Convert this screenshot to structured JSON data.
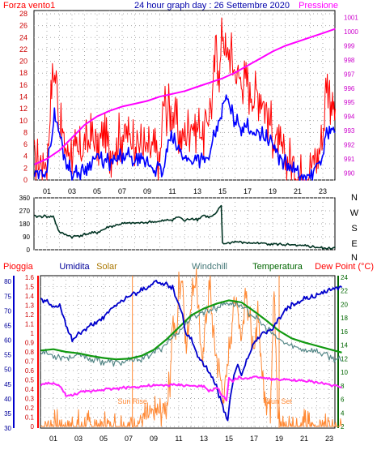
{
  "chart_data": [
    {
      "type": "line",
      "title": "24 hour graph day : 26 Settembre 2020",
      "left_label": "Forza vento1",
      "right_label": "Pressione",
      "x_ticks": [
        "01",
        "03",
        "05",
        "07",
        "09",
        "11",
        "13",
        "15",
        "17",
        "19",
        "21",
        "23"
      ],
      "y_left_ticks": [
        "0",
        "2",
        "4",
        "6",
        "8",
        "10",
        "12",
        "14",
        "16",
        "18",
        "20",
        "22",
        "24",
        "26",
        "28"
      ],
      "y_left_range": [
        0,
        28
      ],
      "y_right_ticks": [
        "990",
        "991",
        "992",
        "993",
        "994",
        "995",
        "996",
        "997",
        "998",
        "999",
        "1000",
        "1001"
      ],
      "y_right_range": [
        989.5,
        1001.5
      ],
      "grid": true,
      "colors": {
        "gust": "#ff0000",
        "speed": "#0000ff",
        "pressure": "#ff00ff",
        "title": "#0000aa"
      },
      "series": [
        {
          "key": "gust",
          "hours": [
            0,
            0.5,
            1,
            1.2,
            1.5,
            1.8,
            2,
            2.3,
            2.6,
            3,
            3.5,
            4,
            4.5,
            5,
            5.5,
            6,
            6.5,
            7,
            7.5,
            8,
            8.5,
            9,
            9.5,
            10,
            10.3,
            10.6,
            11,
            11.5,
            12,
            12.5,
            13,
            13.5,
            14,
            14.2,
            14.5,
            14.8,
            15,
            15.3,
            15.6,
            16,
            16.5,
            17,
            17.5,
            18,
            18.5,
            19,
            19.5,
            20,
            20.5,
            21,
            21.5,
            22,
            22.5,
            23,
            23.3,
            23.6,
            24
          ],
          "values": [
            3,
            3,
            3,
            10,
            18,
            16,
            9,
            7,
            5,
            5,
            4,
            6,
            7,
            6,
            7,
            5,
            6,
            8,
            7,
            7,
            6,
            5,
            5,
            3,
            13,
            12,
            12,
            8,
            7,
            10,
            9,
            8,
            12,
            14,
            22,
            18,
            26,
            20,
            22,
            18,
            17,
            16,
            14,
            15,
            12,
            8,
            5,
            4,
            3,
            1,
            0,
            2,
            4,
            7,
            18,
            14,
            12
          ]
        },
        {
          "key": "speed",
          "hours": [
            0,
            0.5,
            1,
            1.3,
            1.6,
            2,
            2.4,
            2.8,
            3,
            3.5,
            4,
            4.5,
            5,
            5.5,
            6,
            6.5,
            7,
            7.5,
            8,
            8.5,
            9,
            9.5,
            10,
            10.3,
            10.6,
            11,
            11.5,
            12,
            12.5,
            13,
            13.5,
            14,
            14.3,
            14.6,
            15,
            15.3,
            15.6,
            16,
            16.5,
            17,
            17.5,
            18,
            18.5,
            19,
            19.5,
            20,
            20.5,
            21,
            21.5,
            22,
            22.5,
            23,
            23.3,
            23.6,
            24
          ],
          "values": [
            1,
            1,
            2,
            6,
            11,
            8,
            4,
            2,
            1,
            1,
            2,
            3,
            4,
            3,
            3,
            3,
            4,
            4,
            3,
            3,
            3,
            2,
            2,
            1,
            6,
            7,
            5,
            4,
            3,
            4,
            3,
            4,
            7,
            9,
            12,
            14,
            12,
            10,
            9,
            9,
            8,
            8,
            7,
            6,
            4,
            3,
            2,
            1,
            0,
            1,
            2,
            4,
            8,
            9,
            8
          ]
        },
        {
          "key": "pressure",
          "hours": [
            0,
            1,
            2,
            3,
            4,
            5,
            6,
            7,
            8,
            9,
            10,
            11,
            12,
            13,
            14,
            15,
            16,
            17,
            18,
            19,
            20,
            21,
            22,
            23,
            24
          ],
          "values": [
            990.6,
            991.0,
            991.6,
            992.5,
            993.4,
            994.0,
            994.4,
            994.7,
            994.9,
            995.1,
            995.4,
            995.6,
            995.8,
            996.1,
            996.4,
            996.7,
            997.1,
            997.6,
            998.1,
            998.6,
            999.0,
            999.3,
            999.6,
            999.9,
            1000.2
          ]
        }
      ]
    },
    {
      "type": "line",
      "direction_labels": [
        "N",
        "W",
        "S",
        "E",
        "N"
      ],
      "y_ticks": [
        "0",
        "90",
        "180",
        "270",
        "360"
      ],
      "y_range": [
        0,
        360
      ],
      "x_ticks": [
        "01",
        "03",
        "05",
        "07",
        "09",
        "11",
        "13",
        "15",
        "17",
        "19",
        "21",
        "23"
      ],
      "grid": true,
      "colors": {
        "line": "#003322"
      },
      "series": [
        {
          "key": "direction",
          "hours": [
            0,
            1,
            1.5,
            2,
            3,
            4,
            5,
            6,
            7,
            8,
            9,
            10,
            11,
            11.5,
            12,
            12.5,
            13,
            13.5,
            14,
            14.5,
            14.9,
            15,
            16,
            17,
            18,
            19,
            20,
            21,
            22,
            22.5,
            23,
            23.5,
            24
          ],
          "values": [
            232,
            232,
            232,
            120,
            90,
            105,
            120,
            160,
            180,
            185,
            190,
            195,
            210,
            230,
            200,
            220,
            210,
            240,
            225,
            250,
            310,
            40,
            55,
            48,
            45,
            42,
            35,
            28,
            22,
            18,
            10,
            6,
            20
          ]
        }
      ]
    },
    {
      "type": "line",
      "headers": [
        "Pioggia",
        "Umidita",
        "Solar",
        "Windchill",
        "Temperatura",
        "Dew Point (°C)"
      ],
      "header_colors": [
        "#ff0000",
        "#000099",
        "#aa7700",
        "#447777",
        "#006600",
        "#ff0000"
      ],
      "x_ticks": [
        "01",
        "03",
        "05",
        "07",
        "09",
        "11",
        "13",
        "15",
        "17",
        "19",
        "21",
        "23"
      ],
      "humidity_ticks": [
        "30",
        "35",
        "40",
        "45",
        "50",
        "55",
        "60",
        "65",
        "70",
        "75",
        "80"
      ],
      "humidity_range": [
        30,
        82
      ],
      "rain_ticks": [
        "0",
        "0.1",
        "0.2",
        "0.3",
        "0.4",
        "0.5",
        "0.6",
        "0.7",
        "0.8",
        "0.9",
        "1",
        "1.1",
        "1.2",
        "1.3",
        "1.4",
        "1.5",
        "1.6"
      ],
      "rain_range": [
        0,
        1.6
      ],
      "temp_ticks": [
        "2",
        "4",
        "6",
        "8",
        "10",
        "12",
        "14",
        "16",
        "18",
        "20",
        "22",
        "24"
      ],
      "temp_range": [
        2,
        24
      ],
      "annotations": [
        {
          "text": "Sun Rise",
          "hour": 7.3
        },
        {
          "text": "Sun Set",
          "hour": 19.0
        }
      ],
      "grid": true,
      "colors": {
        "humidity": "#0000cc",
        "solar": "#ff8833",
        "windchill": "#558888",
        "temperature": "#119911",
        "dewpoint": "#ff22ff",
        "rain": "#ff0000"
      },
      "series": [
        {
          "key": "humidity",
          "hours": [
            0,
            0.5,
            1,
            1.5,
            2,
            2.5,
            3,
            4,
            5,
            6,
            7,
            8,
            8.5,
            9,
            10,
            10.5,
            11,
            11.3,
            11.6,
            12,
            12.5,
            13,
            13.5,
            14,
            14.3,
            14.6,
            14.9,
            15.1,
            15.4,
            15.7,
            16,
            16.5,
            17,
            17.5,
            18,
            18.5,
            19,
            19.5,
            20,
            21,
            22,
            23,
            23.5,
            24
          ],
          "values": [
            74,
            73,
            71,
            72,
            65,
            60,
            62,
            65,
            68,
            72,
            75,
            77,
            78,
            80,
            79,
            78,
            72,
            68,
            62,
            60,
            55,
            52,
            48,
            44,
            40,
            36,
            33,
            40,
            48,
            52,
            48,
            54,
            59,
            62,
            63,
            64,
            67,
            70,
            72,
            74,
            75,
            77,
            78,
            78
          ]
        },
        {
          "key": "solar",
          "hours": [
            0,
            6.9,
            7.3,
            7.8,
            8.5,
            9,
            9.5,
            10,
            10.3,
            10.5,
            10.8,
            11,
            11.3,
            11.6,
            12,
            12.4,
            12.8,
            13.2,
            13.5,
            13.8,
            14.2,
            14.6,
            15,
            15.3,
            15.6,
            16,
            16.3,
            16.7,
            17,
            17.3,
            17.6,
            18,
            18.3,
            18.6,
            18.9,
            19.2,
            24
          ],
          "values": [
            0,
            0,
            0.02,
            0.05,
            0.1,
            0.13,
            0.15,
            0.2,
            0.5,
            1.2,
            0.9,
            1.5,
            1.6,
            0.8,
            1.4,
            1.6,
            0.7,
            1.2,
            1.5,
            0.9,
            0.6,
            0.3,
            0.8,
            1.2,
            1.4,
            0.9,
            1.5,
            1.1,
            0.7,
            1.3,
            0.6,
            0.3,
            0.2,
            1.6,
            0.1,
            0,
            0
          ]
        },
        {
          "key": "windchill",
          "hours": [
            0,
            1,
            2,
            3,
            4,
            5,
            6,
            7,
            8,
            9,
            10,
            11,
            12,
            13,
            14,
            15,
            16,
            17,
            18,
            19,
            20,
            21,
            22,
            23,
            24
          ],
          "values": [
            13.0,
            12.5,
            12.2,
            12.5,
            12.0,
            11.6,
            11.4,
            11.6,
            12.0,
            12.8,
            14.2,
            16.0,
            18.0,
            19.0,
            19.5,
            20.3,
            19.8,
            18.2,
            16.5,
            14.8,
            13.8,
            13.4,
            13.0,
            12.4,
            11.6
          ]
        },
        {
          "key": "temperature",
          "hours": [
            0,
            1,
            2,
            3,
            4,
            5,
            6,
            7,
            8,
            9,
            10,
            11,
            12,
            13,
            14,
            15,
            16,
            17,
            18,
            19,
            20,
            21,
            22,
            23,
            24
          ],
          "values": [
            13.2,
            13.4,
            13.0,
            12.8,
            12.4,
            12.1,
            11.9,
            12.0,
            12.4,
            13.3,
            14.8,
            16.6,
            18.4,
            19.4,
            20.1,
            20.6,
            20.3,
            19.0,
            17.6,
            16.1,
            15.0,
            14.4,
            13.9,
            13.4,
            12.9
          ]
        },
        {
          "key": "dewpoint",
          "hours": [
            0,
            1,
            1.5,
            2,
            2.5,
            3,
            4,
            5,
            6,
            7,
            8,
            9,
            10,
            11,
            12,
            13,
            13.5,
            14,
            14.5,
            14.8,
            15,
            15.3,
            15.8,
            16.3,
            17,
            18,
            19,
            20,
            21,
            22,
            23,
            24
          ],
          "values": [
            8.2,
            8.3,
            8.0,
            6.6,
            6.5,
            7.0,
            7.2,
            7.5,
            7.6,
            7.8,
            7.9,
            8.0,
            8.1,
            8.1,
            8.0,
            7.8,
            7.2,
            7.8,
            6.5,
            6.0,
            9.0,
            8.8,
            9.2,
            9.0,
            9.3,
            9.1,
            8.9,
            8.8,
            8.7,
            8.5,
            8.2,
            7.8
          ]
        }
      ]
    }
  ]
}
